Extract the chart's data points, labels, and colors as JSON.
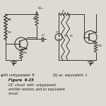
{
  "caption_bold": "Figure  6-25",
  "caption_line1": "CE  circuit  with  unbypassed",
  "caption_line2": "emitter resistor, and ac equivalent",
  "caption_line3": "circuit.",
  "label_left": "with unbypassed  R",
  "label_left_sub": "E",
  "label_right": "(b) ac  equivalent  c",
  "bg_color": "#dedad2",
  "line_color": "#3a3530",
  "text_color": "#1a1510"
}
